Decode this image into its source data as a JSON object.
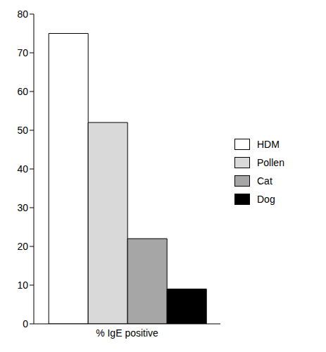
{
  "chart_data": {
    "type": "bar",
    "categories": [
      "% IgE positive"
    ],
    "series": [
      {
        "name": "HDM",
        "color": "#ffffff",
        "values": [
          75
        ]
      },
      {
        "name": "Pollen",
        "color": "#d9d9d9",
        "values": [
          52
        ]
      },
      {
        "name": "Cat",
        "color": "#a6a6a6",
        "values": [
          22
        ]
      },
      {
        "name": "Dog",
        "color": "#000000",
        "values": [
          9
        ]
      }
    ],
    "ylim": [
      0,
      80
    ],
    "yticks": [
      0,
      10,
      20,
      30,
      40,
      50,
      60,
      70,
      80
    ],
    "grid": false,
    "legend": "right"
  }
}
